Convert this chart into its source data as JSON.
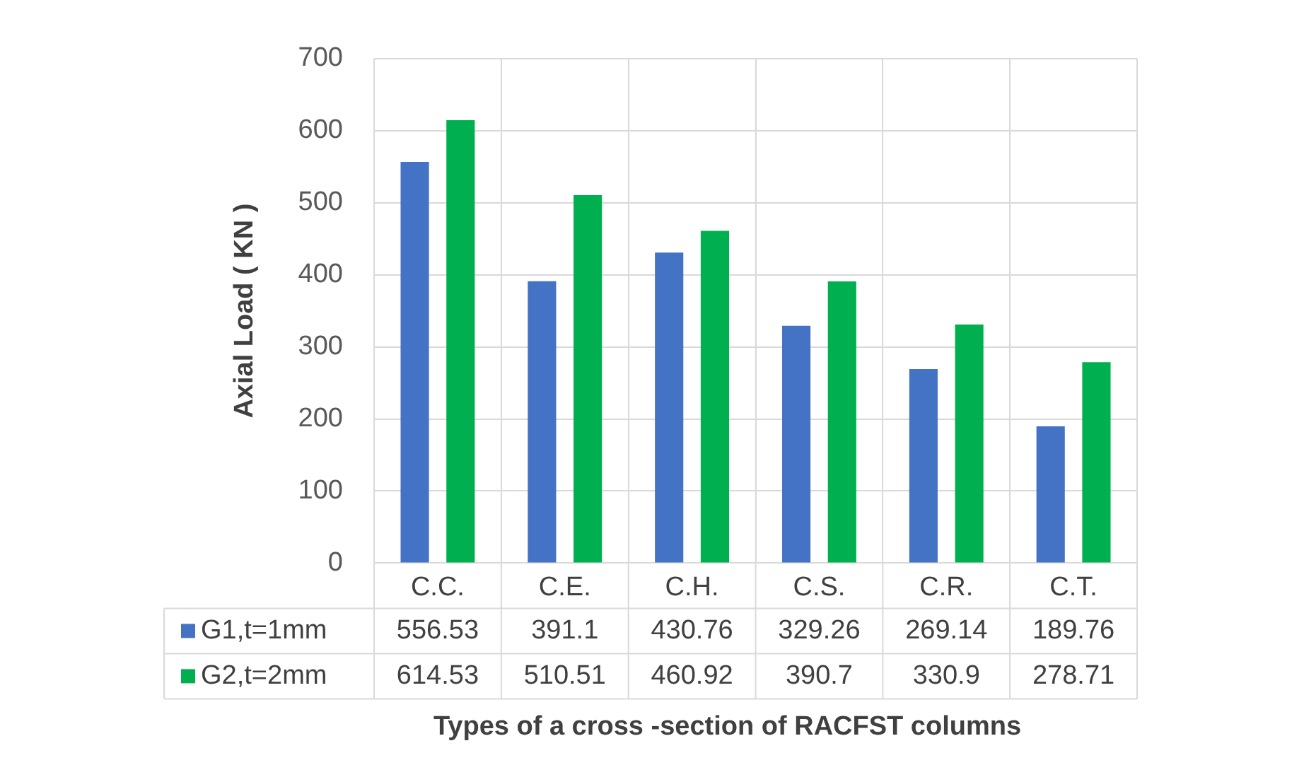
{
  "chart_data": {
    "type": "bar",
    "categories": [
      "C.C.",
      "C.E.",
      "C.H.",
      "C.S.",
      "C.R.",
      "C.T."
    ],
    "series": [
      {
        "name": "G1,t=1mm",
        "color": "#4472c4",
        "values": [
          556.53,
          391.1,
          430.76,
          329.26,
          269.14,
          189.76
        ]
      },
      {
        "name": "G2,t=2mm",
        "color": "#00b050",
        "values": [
          614.53,
          510.51,
          460.92,
          390.7,
          330.9,
          278.71
        ]
      }
    ],
    "xlabel": "Types of a cross -section of RACFST columns",
    "ylabel": "Axial Load ( KN )",
    "ylim": [
      0,
      700
    ],
    "yticks": [
      0,
      100,
      200,
      300,
      400,
      500,
      600,
      700
    ],
    "grid": true,
    "legend": "bottom",
    "data_labels": true
  }
}
